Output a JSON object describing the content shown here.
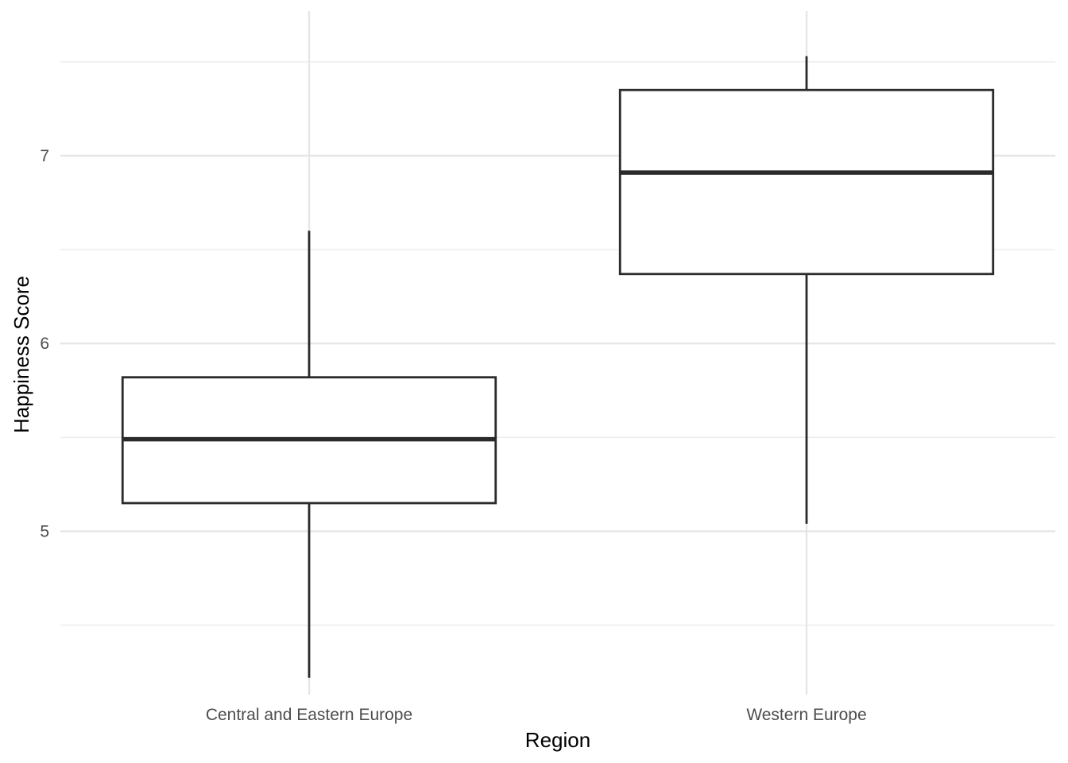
{
  "chart_data": {
    "type": "boxplot",
    "title": "",
    "xlabel": "Region",
    "ylabel": "Happiness Score",
    "ylim": [
      4.13,
      7.77
    ],
    "y_ticks": [
      5,
      6,
      7
    ],
    "y_tick_labels": [
      "5",
      "6",
      "7"
    ],
    "y_minor_ticks": [
      4.5,
      5.5,
      6.5,
      7.5
    ],
    "grid": true,
    "categories": [
      "Central and Eastern Europe",
      "Western Europe"
    ],
    "boxes": [
      {
        "category": "Central and Eastern Europe",
        "min": 4.22,
        "q1": 5.15,
        "median": 5.49,
        "q3": 5.82,
        "max": 6.6
      },
      {
        "category": "Western Europe",
        "min": 5.04,
        "q1": 6.37,
        "median": 6.91,
        "q3": 7.35,
        "max": 7.53
      }
    ],
    "colors": {
      "box_stroke": "#2b2b2b",
      "box_fill": "#ffffff",
      "grid": "#e6e6e6"
    }
  }
}
